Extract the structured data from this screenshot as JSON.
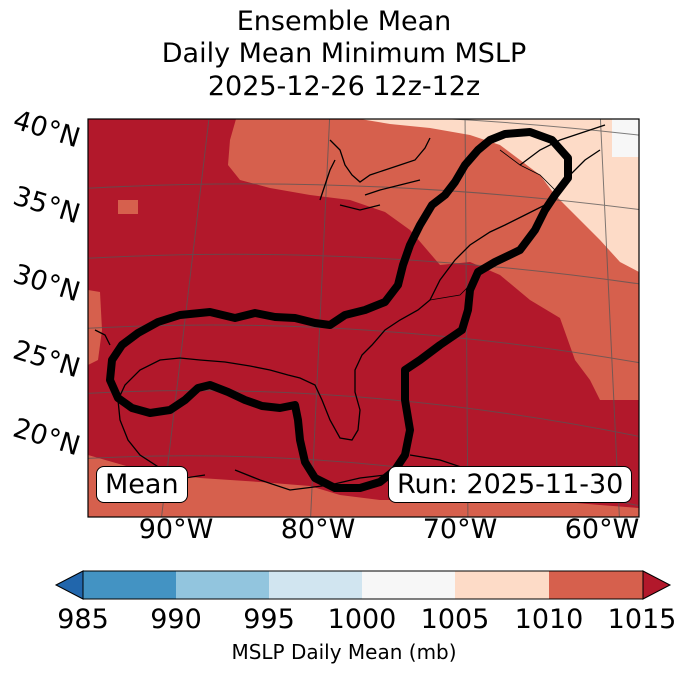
{
  "title": {
    "line1": "Ensemble Mean",
    "line2": "Daily Mean Minimum MSLP",
    "line3": "2025-12-26 12z-12z"
  },
  "map": {
    "lat_labels": [
      "40°N",
      "35°N",
      "30°N",
      "25°N",
      "20°N"
    ],
    "lon_labels": [
      "90°W",
      "80°W",
      "70°W",
      "60°W"
    ],
    "left_box": "Mean",
    "right_box": "Run: 2025-11-30",
    "colors": {
      "c1015": "#b2182b",
      "c1010": "#d6604d",
      "c1005": "#fddbc7",
      "c1000": "#f7f7f7"
    }
  },
  "colorbar": {
    "ticks": [
      "985",
      "990",
      "995",
      "1000",
      "1005",
      "1010",
      "1015"
    ],
    "colors": [
      "#2166ac",
      "#4393c3",
      "#92c5de",
      "#d1e5f0",
      "#f7f7f7",
      "#fddbc7",
      "#d6604d",
      "#b2182b"
    ],
    "label": "MSLP Daily Mean (mb)"
  }
}
